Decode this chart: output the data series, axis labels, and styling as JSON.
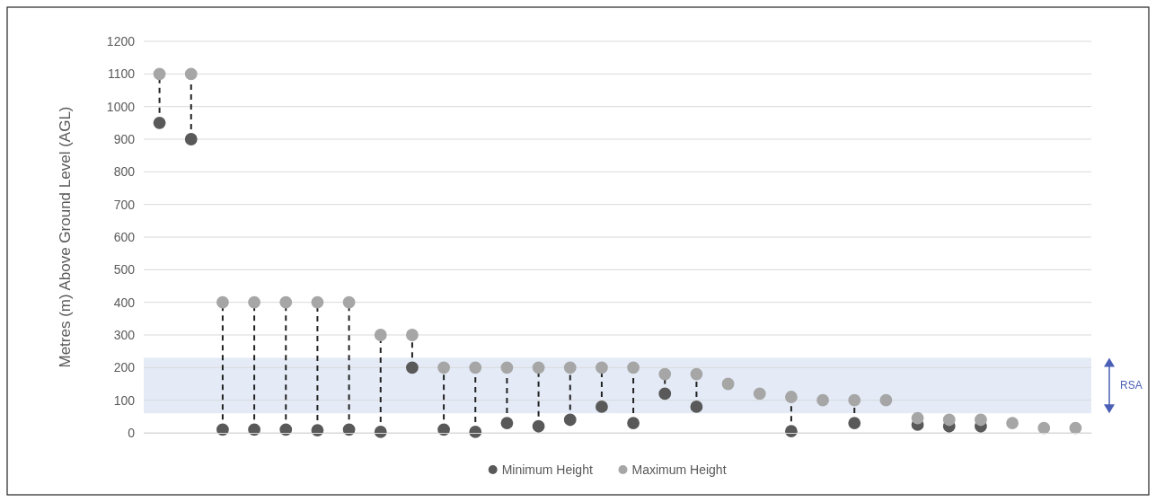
{
  "chart_data": {
    "type": "scatter",
    "ylabel": "Metres (m) Above Ground Level (AGL)",
    "categories": [
      null,
      null,
      null,
      null,
      null,
      null,
      null,
      null,
      null,
      null,
      null,
      null,
      null,
      null,
      null,
      null,
      null,
      null,
      null,
      null,
      null,
      null,
      null,
      null,
      null,
      null,
      null,
      null,
      null,
      null
    ],
    "series": [
      {
        "name": "Minimum Height",
        "color": "#595959",
        "values": [
          950,
          900,
          10,
          10,
          10,
          8,
          10,
          3,
          200,
          10,
          3,
          30,
          20,
          40,
          80,
          30,
          120,
          80,
          null,
          null,
          5,
          null,
          30,
          null,
          25,
          20,
          20,
          null,
          null,
          null
        ]
      },
      {
        "name": "Maximum Height",
        "color": "#a6a6a6",
        "values": [
          1100,
          1100,
          400,
          400,
          400,
          400,
          400,
          300,
          300,
          200,
          200,
          200,
          200,
          200,
          200,
          200,
          180,
          180,
          150,
          120,
          110,
          100,
          100,
          100,
          45,
          40,
          40,
          30,
          15,
          15
        ]
      }
    ],
    "ylim": [
      0,
      1200
    ],
    "yticks": [
      0,
      100,
      200,
      300,
      400,
      500,
      600,
      700,
      800,
      900,
      1000,
      1100,
      1200
    ],
    "grid": "y",
    "legend": "bottom",
    "marker": "circle",
    "bands": [
      {
        "axis": "y",
        "from": 60,
        "to": 230,
        "label": "RSA",
        "color": "#dde6f5"
      }
    ]
  }
}
